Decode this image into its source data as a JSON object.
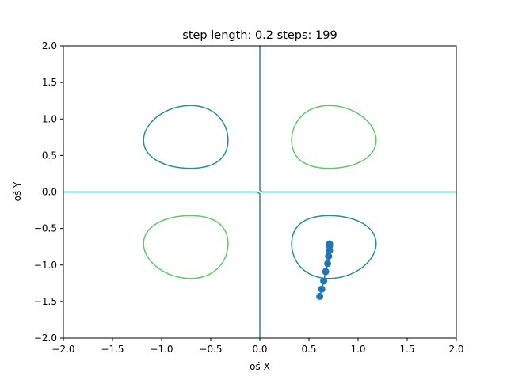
{
  "chart_data": {
    "type": "contour",
    "title": "step length: 0.2 steps: 199",
    "xlabel": "oś X",
    "ylabel": "oś Y",
    "xlim": [
      -2.0,
      2.0
    ],
    "ylim": [
      -2.0,
      2.0
    ],
    "xticks": [
      -2.0,
      -1.5,
      -1.0,
      -0.5,
      0.0,
      0.5,
      1.0,
      1.5,
      2.0
    ],
    "yticks": [
      -2.0,
      -1.5,
      -1.0,
      -0.5,
      0.0,
      0.5,
      1.0,
      1.5,
      2.0
    ],
    "xtick_labels": [
      "−2.0",
      "−1.5",
      "−1.0",
      "−0.5",
      "0.0",
      "0.5",
      "1.0",
      "1.5",
      "2.0"
    ],
    "ytick_labels": [
      "−2.0",
      "−1.5",
      "−1.0",
      "−0.5",
      "0.0",
      "0.5",
      "1.0",
      "1.5",
      "2.0"
    ],
    "contour_levels": [
      {
        "level": -0.375,
        "color": "#440154"
      },
      {
        "level": -0.25,
        "color": "#3b528b"
      },
      {
        "level": -0.125,
        "color": "#21918c"
      },
      {
        "level": 0.0,
        "color": "#21918c"
      },
      {
        "level": 0.125,
        "color": "#5ec962"
      },
      {
        "level": 0.25,
        "color": "#5ec962"
      },
      {
        "level": 0.375,
        "color": "#addc30"
      }
    ],
    "path_series": {
      "color": "#1f77b4",
      "x": [
        0.61,
        0.63,
        0.65,
        0.67,
        0.69,
        0.7,
        0.71,
        0.71,
        0.71
      ],
      "y": [
        -1.43,
        -1.33,
        -1.22,
        -1.09,
        -0.98,
        -0.88,
        -0.8,
        -0.74,
        -0.71
      ]
    },
    "grid": false
  }
}
